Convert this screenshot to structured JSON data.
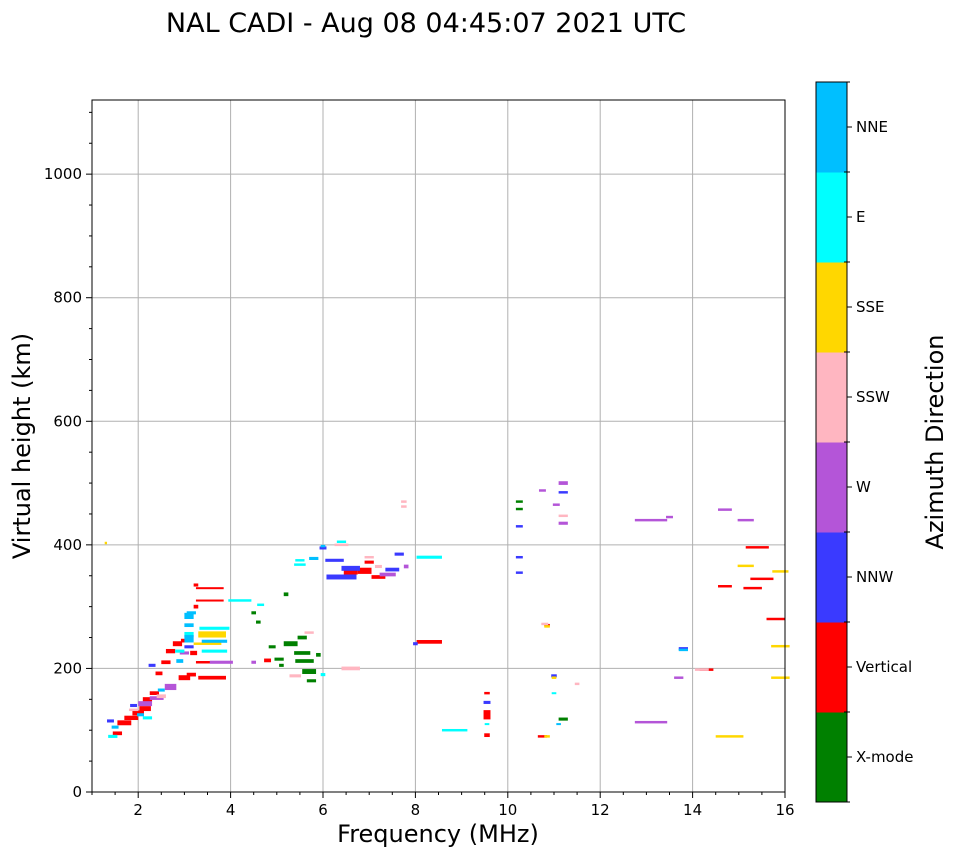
{
  "chart_data": {
    "type": "scatter",
    "title": "NAL CADI - Aug 08 04:45:07 2021 UTC",
    "xlabel": "Frequency (MHz)",
    "ylabel": "Virtual height (km)",
    "xlim": [
      1,
      16
    ],
    "ylim": [
      0,
      1120
    ],
    "xticks": [
      2,
      4,
      6,
      8,
      10,
      12,
      14,
      16
    ],
    "yticks": [
      0,
      200,
      400,
      600,
      800,
      1000
    ],
    "grid": true,
    "colorbar_label": "Azimuth Direction",
    "colorbar": [
      {
        "name": "X-mode",
        "color": "#008000"
      },
      {
        "name": "Vertical",
        "color": "#ff0000"
      },
      {
        "name": "NNW",
        "color": "#3a3aff"
      },
      {
        "name": "W",
        "color": "#b455d8"
      },
      {
        "name": "SSW",
        "color": "#ffb6c1"
      },
      {
        "name": "SSE",
        "color": "#ffd700"
      },
      {
        "name": "E",
        "color": "#00ffff"
      },
      {
        "name": "NNE",
        "color": "#00bfff"
      }
    ],
    "series": [
      {
        "name": "Vertical",
        "points": [
          [
            1.55,
            95,
            0.2,
            6
          ],
          [
            1.7,
            112,
            0.3,
            8
          ],
          [
            1.85,
            120,
            0.3,
            7
          ],
          [
            2.0,
            128,
            0.25,
            8
          ],
          [
            2.15,
            135,
            0.25,
            8
          ],
          [
            2.2,
            150,
            0.2,
            7
          ],
          [
            2.35,
            160,
            0.2,
            6
          ],
          [
            2.45,
            192,
            0.15,
            6
          ],
          [
            2.6,
            210,
            0.2,
            6
          ],
          [
            2.7,
            228,
            0.2,
            7
          ],
          [
            2.85,
            240,
            0.2,
            8
          ],
          [
            3.0,
            245,
            0.15,
            6
          ],
          [
            3.0,
            185,
            0.25,
            8
          ],
          [
            3.15,
            190,
            0.2,
            6
          ],
          [
            3.2,
            225,
            0.15,
            7
          ],
          [
            3.25,
            300,
            0.1,
            6
          ],
          [
            3.25,
            335,
            0.1,
            5
          ],
          [
            3.6,
            185,
            0.6,
            6
          ],
          [
            3.55,
            210,
            0.6,
            4
          ],
          [
            3.55,
            310,
            0.6,
            3
          ],
          [
            3.55,
            330,
            0.6,
            3
          ],
          [
            4.8,
            213,
            0.15,
            6
          ],
          [
            6.6,
            356,
            0.3,
            8
          ],
          [
            6.9,
            358,
            0.3,
            10
          ],
          [
            7.0,
            372,
            0.2,
            5
          ],
          [
            7.2,
            348,
            0.3,
            6
          ],
          [
            8.3,
            243,
            0.55,
            6
          ],
          [
            9.55,
            160,
            0.12,
            4
          ],
          [
            9.55,
            125,
            0.15,
            15
          ],
          [
            9.55,
            92,
            0.12,
            6
          ],
          [
            10.75,
            90,
            0.2,
            4
          ],
          [
            10.85,
            270,
            0.12,
            4
          ],
          [
            14.3,
            198,
            0.3,
            4
          ],
          [
            14.7,
            333,
            0.3,
            4
          ],
          [
            15.3,
            330,
            0.4,
            4
          ],
          [
            15.5,
            345,
            0.5,
            4
          ],
          [
            15.4,
            396,
            0.5,
            4
          ],
          [
            15.8,
            280,
            0.4,
            4
          ]
        ]
      },
      {
        "name": "X-mode",
        "points": [
          [
            4.6,
            275,
            0.1,
            5
          ],
          [
            4.5,
            290,
            0.1,
            5
          ],
          [
            4.9,
            235,
            0.15,
            5
          ],
          [
            5.05,
            215,
            0.2,
            5
          ],
          [
            5.1,
            205,
            0.1,
            5
          ],
          [
            5.3,
            240,
            0.3,
            8
          ],
          [
            5.55,
            250,
            0.2,
            6
          ],
          [
            5.55,
            225,
            0.35,
            6
          ],
          [
            5.6,
            212,
            0.4,
            6
          ],
          [
            5.7,
            195,
            0.3,
            8
          ],
          [
            5.75,
            180,
            0.2,
            5
          ],
          [
            5.9,
            222,
            0.1,
            6
          ],
          [
            5.2,
            320,
            0.1,
            6
          ],
          [
            10.25,
            470,
            0.15,
            4
          ],
          [
            10.25,
            458,
            0.15,
            4
          ],
          [
            11.2,
            118,
            0.2,
            5
          ]
        ]
      },
      {
        "name": "NNW",
        "points": [
          [
            1.4,
            115,
            0.15,
            5
          ],
          [
            1.9,
            140,
            0.15,
            5
          ],
          [
            2.3,
            205,
            0.15,
            5
          ],
          [
            3.1,
            235,
            0.2,
            5
          ],
          [
            6.25,
            375,
            0.4,
            5
          ],
          [
            6.0,
            395,
            0.15,
            5
          ],
          [
            6.4,
            348,
            0.65,
            8
          ],
          [
            6.6,
            362,
            0.4,
            8
          ],
          [
            7.5,
            360,
            0.3,
            6
          ],
          [
            7.65,
            385,
            0.2,
            5
          ],
          [
            8.0,
            240,
            0.1,
            5
          ],
          [
            10.25,
            430,
            0.15,
            4
          ],
          [
            10.25,
            380,
            0.15,
            4
          ],
          [
            10.25,
            355,
            0.15,
            4
          ],
          [
            11.2,
            485,
            0.2,
            4
          ],
          [
            9.55,
            145,
            0.15,
            5
          ],
          [
            13.8,
            232,
            0.2,
            5
          ],
          [
            11.0,
            188,
            0.12,
            5
          ]
        ]
      },
      {
        "name": "W",
        "points": [
          [
            2.15,
            143,
            0.3,
            8
          ],
          [
            2.4,
            152,
            0.3,
            6
          ],
          [
            2.7,
            170,
            0.25,
            10
          ],
          [
            3.0,
            225,
            0.2,
            5
          ],
          [
            3.8,
            210,
            0.5,
            5
          ],
          [
            4.5,
            210,
            0.1,
            5
          ],
          [
            7.4,
            352,
            0.35,
            6
          ],
          [
            7.8,
            365,
            0.1,
            6
          ],
          [
            10.75,
            488,
            0.15,
            4
          ],
          [
            11.05,
            465,
            0.15,
            4
          ],
          [
            11.2,
            435,
            0.2,
            5
          ],
          [
            11.2,
            500,
            0.2,
            6
          ],
          [
            13.1,
            440,
            0.7,
            4
          ],
          [
            13.5,
            445,
            0.15,
            4
          ],
          [
            13.1,
            113,
            0.7,
            4
          ],
          [
            13.7,
            185,
            0.2,
            4
          ],
          [
            14.7,
            457,
            0.3,
            4
          ],
          [
            15.15,
            440,
            0.35,
            4
          ]
        ]
      },
      {
        "name": "SSW",
        "points": [
          [
            1.9,
            133,
            0.2,
            4
          ],
          [
            2.5,
            155,
            0.2,
            6
          ],
          [
            5.4,
            188,
            0.25,
            5
          ],
          [
            5.7,
            258,
            0.2,
            4
          ],
          [
            6.6,
            200,
            0.4,
            6
          ],
          [
            7.0,
            380,
            0.2,
            4
          ],
          [
            7.2,
            365,
            0.15,
            5
          ],
          [
            7.75,
            470,
            0.12,
            4
          ],
          [
            7.75,
            462,
            0.12,
            4
          ],
          [
            10.8,
            272,
            0.15,
            4
          ],
          [
            11.2,
            447,
            0.2,
            4
          ],
          [
            11.5,
            175,
            0.1,
            4
          ],
          [
            14.2,
            198,
            0.3,
            4
          ],
          [
            6.4,
            400,
            0.3,
            4
          ]
        ]
      },
      {
        "name": "SSE",
        "points": [
          [
            1.3,
            403,
            0.05,
            4
          ],
          [
            3.6,
            255,
            0.6,
            10
          ],
          [
            3.5,
            240,
            0.6,
            4
          ],
          [
            10.85,
            90,
            0.12,
            4
          ],
          [
            10.85,
            268,
            0.12,
            4
          ],
          [
            11.0,
            185,
            0.1,
            4
          ],
          [
            14.8,
            90,
            0.6,
            4
          ],
          [
            15.15,
            366,
            0.35,
            4
          ],
          [
            15.9,
            357,
            0.35,
            4
          ],
          [
            15.9,
            236,
            0.4,
            4
          ],
          [
            15.9,
            185,
            0.4,
            4
          ]
        ]
      },
      {
        "name": "E",
        "points": [
          [
            1.45,
            90,
            0.2,
            5
          ],
          [
            2.2,
            120,
            0.2,
            5
          ],
          [
            2.9,
            228,
            0.2,
            5
          ],
          [
            3.65,
            265,
            0.65,
            5
          ],
          [
            3.65,
            228,
            0.55,
            5
          ],
          [
            3.1,
            255,
            0.2,
            8
          ],
          [
            4.2,
            310,
            0.5,
            4
          ],
          [
            4.65,
            303,
            0.15,
            4
          ],
          [
            5.5,
            368,
            0.25,
            4
          ],
          [
            5.5,
            375,
            0.2,
            4
          ],
          [
            6.4,
            405,
            0.2,
            4
          ],
          [
            6.0,
            190,
            0.1,
            5
          ],
          [
            8.3,
            380,
            0.55,
            5
          ],
          [
            8.85,
            100,
            0.55,
            4
          ],
          [
            9.55,
            110,
            0.1,
            3
          ],
          [
            11.0,
            160,
            0.1,
            3
          ]
        ]
      },
      {
        "name": "NNE",
        "points": [
          [
            1.5,
            105,
            0.15,
            5
          ],
          [
            2.05,
            125,
            0.15,
            5
          ],
          [
            2.5,
            165,
            0.15,
            5
          ],
          [
            2.9,
            212,
            0.15,
            6
          ],
          [
            3.1,
            248,
            0.2,
            12
          ],
          [
            3.1,
            285,
            0.2,
            10
          ],
          [
            3.1,
            270,
            0.2,
            6
          ],
          [
            3.15,
            290,
            0.2,
            5
          ],
          [
            3.65,
            244,
            0.55,
            5
          ],
          [
            6.0,
            398,
            0.1,
            4
          ],
          [
            5.8,
            378,
            0.2,
            5
          ],
          [
            13.8,
            230,
            0.2,
            4
          ],
          [
            11.1,
            110,
            0.1,
            3
          ]
        ]
      }
    ]
  }
}
